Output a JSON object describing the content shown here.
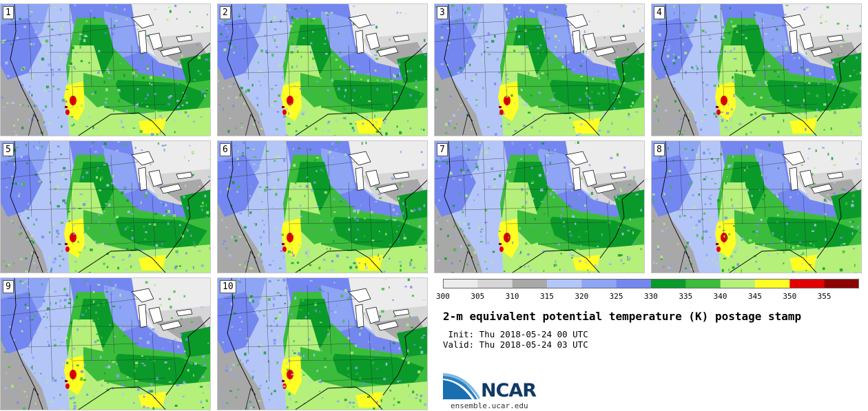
{
  "panels": [
    {
      "label": "1"
    },
    {
      "label": "2"
    },
    {
      "label": "3"
    },
    {
      "label": "4"
    },
    {
      "label": "5"
    },
    {
      "label": "6"
    },
    {
      "label": "7"
    },
    {
      "label": "8"
    },
    {
      "label": "9"
    },
    {
      "label": "10"
    }
  ],
  "colorbar": {
    "colors": [
      "#ececec",
      "#d6d6d6",
      "#a8a8a8",
      "#b4c6f8",
      "#8ea4f4",
      "#7486f0",
      "#0a9a2a",
      "#3cbc3c",
      "#b4f07a",
      "#ffff24",
      "#e00000",
      "#8c0000"
    ],
    "ticks": [
      "300",
      "305",
      "310",
      "315",
      "320",
      "325",
      "330",
      "335",
      "340",
      "345",
      "350",
      "355"
    ]
  },
  "title": "2-m equivalent potential temperature (K) postage stamp",
  "init": " Init: Thu 2018-05-24 00 UTC",
  "valid": "Valid: Thu 2018-05-24 03 UTC",
  "logo": {
    "text": "NCAR",
    "site": "ensemble.ucar.edu"
  }
}
